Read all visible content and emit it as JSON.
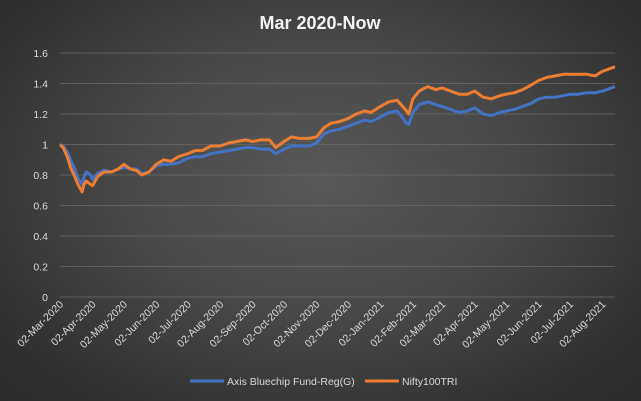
{
  "chart_data": {
    "type": "line",
    "title": "Mar  2020-Now",
    "xlabel": "",
    "ylabel": "",
    "ylim": [
      0,
      1.6
    ],
    "yticks": [
      "0",
      "0.2",
      "0.4",
      "0.6",
      "0.8",
      "1",
      "1.2",
      "1.4",
      "1.6"
    ],
    "categories": [
      "02-Mar-2020",
      "02-Apr-2020",
      "02-May-2020",
      "02-Jun-2020",
      "02-Jul-2020",
      "02-Aug-2020",
      "02-Sep-2020",
      "02-Oct-2020",
      "02-Nov-2020",
      "02-Dec-2020",
      "02-Jan-2021",
      "02-Feb-2021",
      "02-Mar-2021",
      "02-Apr-2021",
      "02-May-2021",
      "02-Jun-2021",
      "02-Jul-2021",
      "02-Aug-2021"
    ],
    "grid": true,
    "legend_position": "bottom",
    "series": [
      {
        "name": "Axis Bluechip Fund-Reg(G)",
        "color": "#4472c4",
        "points": [
          [
            "02-Mar-2020",
            1.0
          ],
          [
            "05-Mar-2020",
            0.99
          ],
          [
            "09-Mar-2020",
            0.95
          ],
          [
            "12-Mar-2020",
            0.9
          ],
          [
            "16-Mar-2020",
            0.84
          ],
          [
            "19-Mar-2020",
            0.78
          ],
          [
            "23-Mar-2020",
            0.74
          ],
          [
            "25-Mar-2020",
            0.79
          ],
          [
            "27-Mar-2020",
            0.82
          ],
          [
            "31-Mar-2020",
            0.8
          ],
          [
            "02-Apr-2020",
            0.77
          ],
          [
            "07-Apr-2020",
            0.81
          ],
          [
            "13-Apr-2020",
            0.83
          ],
          [
            "20-Apr-2020",
            0.82
          ],
          [
            "27-Apr-2020",
            0.84
          ],
          [
            "02-May-2020",
            0.85
          ],
          [
            "08-May-2020",
            0.84
          ],
          [
            "14-May-2020",
            0.84
          ],
          [
            "19-May-2020",
            0.81
          ],
          [
            "26-May-2020",
            0.82
          ],
          [
            "02-Jun-2020",
            0.86
          ],
          [
            "09-Jun-2020",
            0.87
          ],
          [
            "16-Jun-2020",
            0.87
          ],
          [
            "23-Jun-2020",
            0.88
          ],
          [
            "02-Jul-2020",
            0.91
          ],
          [
            "09-Jul-2020",
            0.92
          ],
          [
            "16-Jul-2020",
            0.92
          ],
          [
            "24-Jul-2020",
            0.94
          ],
          [
            "02-Aug-2020",
            0.95
          ],
          [
            "10-Aug-2020",
            0.96
          ],
          [
            "18-Aug-2020",
            0.97
          ],
          [
            "26-Aug-2020",
            0.98
          ],
          [
            "02-Sep-2020",
            0.98
          ],
          [
            "10-Sep-2020",
            0.97
          ],
          [
            "18-Sep-2020",
            0.97
          ],
          [
            "24-Sep-2020",
            0.94
          ],
          [
            "02-Oct-2020",
            0.97
          ],
          [
            "09-Oct-2020",
            0.99
          ],
          [
            "16-Oct-2020",
            0.99
          ],
          [
            "26-Oct-2020",
            0.99
          ],
          [
            "02-Nov-2020",
            1.01
          ],
          [
            "09-Nov-2020",
            1.07
          ],
          [
            "16-Nov-2020",
            1.09
          ],
          [
            "24-Nov-2020",
            1.1
          ],
          [
            "02-Dec-2020",
            1.12
          ],
          [
            "10-Dec-2020",
            1.14
          ],
          [
            "18-Dec-2020",
            1.16
          ],
          [
            "24-Dec-2020",
            1.15
          ],
          [
            "02-Jan-2021",
            1.18
          ],
          [
            "10-Jan-2021",
            1.21
          ],
          [
            "18-Jan-2021",
            1.22
          ],
          [
            "27-Jan-2021",
            1.14
          ],
          [
            "29-Jan-2021",
            1.13
          ],
          [
            "02-Feb-2021",
            1.21
          ],
          [
            "08-Feb-2021",
            1.26
          ],
          [
            "16-Feb-2021",
            1.28
          ],
          [
            "24-Feb-2021",
            1.26
          ],
          [
            "02-Mar-2021",
            1.25
          ],
          [
            "10-Mar-2021",
            1.23
          ],
          [
            "18-Mar-2021",
            1.21
          ],
          [
            "26-Mar-2021",
            1.22
          ],
          [
            "02-Apr-2021",
            1.24
          ],
          [
            "10-Apr-2021",
            1.2
          ],
          [
            "18-Apr-2021",
            1.19
          ],
          [
            "26-Apr-2021",
            1.21
          ],
          [
            "02-May-2021",
            1.22
          ],
          [
            "10-May-2021",
            1.23
          ],
          [
            "18-May-2021",
            1.25
          ],
          [
            "26-May-2021",
            1.27
          ],
          [
            "02-Jun-2021",
            1.3
          ],
          [
            "10-Jun-2021",
            1.31
          ],
          [
            "18-Jun-2021",
            1.31
          ],
          [
            "26-Jun-2021",
            1.32
          ],
          [
            "02-Jul-2021",
            1.33
          ],
          [
            "10-Jul-2021",
            1.33
          ],
          [
            "18-Jul-2021",
            1.34
          ],
          [
            "26-Jul-2021",
            1.34
          ],
          [
            "02-Aug-2021",
            1.35
          ],
          [
            "06-Aug-2021",
            1.36
          ],
          [
            "10-Aug-2021",
            1.37
          ],
          [
            "14-Aug-2021",
            1.38
          ]
        ]
      },
      {
        "name": "Nifty100TRI",
        "color": "#ed7d31",
        "points": [
          [
            "02-Mar-2020",
            1.0
          ],
          [
            "05-Mar-2020",
            0.98
          ],
          [
            "09-Mar-2020",
            0.92
          ],
          [
            "12-Mar-2020",
            0.85
          ],
          [
            "16-Mar-2020",
            0.79
          ],
          [
            "19-Mar-2020",
            0.74
          ],
          [
            "23-Mar-2020",
            0.69
          ],
          [
            "25-Mar-2020",
            0.74
          ],
          [
            "27-Mar-2020",
            0.76
          ],
          [
            "31-Mar-2020",
            0.74
          ],
          [
            "02-Apr-2020",
            0.73
          ],
          [
            "07-Apr-2020",
            0.79
          ],
          [
            "13-Apr-2020",
            0.82
          ],
          [
            "20-Apr-2020",
            0.82
          ],
          [
            "27-Apr-2020",
            0.84
          ],
          [
            "02-May-2020",
            0.87
          ],
          [
            "08-May-2020",
            0.84
          ],
          [
            "14-May-2020",
            0.83
          ],
          [
            "19-May-2020",
            0.8
          ],
          [
            "26-May-2020",
            0.82
          ],
          [
            "02-Jun-2020",
            0.87
          ],
          [
            "09-Jun-2020",
            0.9
          ],
          [
            "16-Jun-2020",
            0.89
          ],
          [
            "23-Jun-2020",
            0.92
          ],
          [
            "02-Jul-2020",
            0.94
          ],
          [
            "09-Jul-2020",
            0.96
          ],
          [
            "16-Jul-2020",
            0.96
          ],
          [
            "24-Jul-2020",
            0.99
          ],
          [
            "02-Aug-2020",
            0.99
          ],
          [
            "10-Aug-2020",
            1.01
          ],
          [
            "18-Aug-2020",
            1.02
          ],
          [
            "26-Aug-2020",
            1.03
          ],
          [
            "02-Sep-2020",
            1.02
          ],
          [
            "10-Sep-2020",
            1.03
          ],
          [
            "18-Sep-2020",
            1.03
          ],
          [
            "24-Sep-2020",
            0.98
          ],
          [
            "02-Oct-2020",
            1.02
          ],
          [
            "09-Oct-2020",
            1.05
          ],
          [
            "16-Oct-2020",
            1.04
          ],
          [
            "26-Oct-2020",
            1.04
          ],
          [
            "02-Nov-2020",
            1.05
          ],
          [
            "09-Nov-2020",
            1.11
          ],
          [
            "16-Nov-2020",
            1.14
          ],
          [
            "24-Nov-2020",
            1.15
          ],
          [
            "02-Dec-2020",
            1.17
          ],
          [
            "10-Dec-2020",
            1.2
          ],
          [
            "18-Dec-2020",
            1.22
          ],
          [
            "24-Dec-2020",
            1.21
          ],
          [
            "02-Jan-2021",
            1.25
          ],
          [
            "10-Jan-2021",
            1.28
          ],
          [
            "18-Jan-2021",
            1.29
          ],
          [
            "27-Jan-2021",
            1.22
          ],
          [
            "29-Jan-2021",
            1.2
          ],
          [
            "02-Feb-2021",
            1.3
          ],
          [
            "08-Feb-2021",
            1.35
          ],
          [
            "16-Feb-2021",
            1.38
          ],
          [
            "24-Feb-2021",
            1.36
          ],
          [
            "02-Mar-2021",
            1.37
          ],
          [
            "10-Mar-2021",
            1.35
          ],
          [
            "18-Mar-2021",
            1.33
          ],
          [
            "26-Mar-2021",
            1.33
          ],
          [
            "02-Apr-2021",
            1.35
          ],
          [
            "10-Apr-2021",
            1.31
          ],
          [
            "18-Apr-2021",
            1.3
          ],
          [
            "26-Apr-2021",
            1.32
          ],
          [
            "02-May-2021",
            1.33
          ],
          [
            "10-May-2021",
            1.34
          ],
          [
            "18-May-2021",
            1.36
          ],
          [
            "26-May-2021",
            1.39
          ],
          [
            "02-Jun-2021",
            1.42
          ],
          [
            "10-Jun-2021",
            1.44
          ],
          [
            "18-Jun-2021",
            1.45
          ],
          [
            "26-Jun-2021",
            1.46
          ],
          [
            "02-Jul-2021",
            1.46
          ],
          [
            "10-Jul-2021",
            1.46
          ],
          [
            "18-Jul-2021",
            1.46
          ],
          [
            "26-Jul-2021",
            1.45
          ],
          [
            "02-Aug-2021",
            1.48
          ],
          [
            "06-Aug-2021",
            1.49
          ],
          [
            "10-Aug-2021",
            1.5
          ],
          [
            "14-Aug-2021",
            1.51
          ]
        ]
      }
    ]
  }
}
